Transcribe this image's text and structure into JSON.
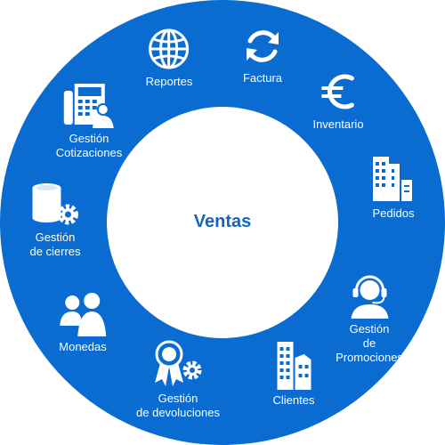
{
  "diagram": {
    "center": "Ventas",
    "colors": {
      "ring": "#0a6cd1",
      "center": "#ffffff",
      "text": "#ffffff",
      "title": "#1565c0"
    },
    "items": [
      {
        "label": "Reportes",
        "icon": "globe-icon"
      },
      {
        "label": "Factura",
        "icon": "refresh-arrows-icon"
      },
      {
        "label": "Inventario",
        "icon": "euro-icon"
      },
      {
        "label": "Pedidos",
        "icon": "buildings-icon"
      },
      {
        "label": "Gestión\nde Promociones",
        "icon": "headset-operator-icon"
      },
      {
        "label": "Clientes",
        "icon": "skyscrapers-icon"
      },
      {
        "label": "Gestión\nde devoluciones",
        "icon": "award-gear-icon"
      },
      {
        "label": "Monedas",
        "icon": "people-icon"
      },
      {
        "label": "Gestión\nde cierres",
        "icon": "database-gear-icon"
      },
      {
        "label": "Gestión\nCotizaciones",
        "icon": "phone-user-icon"
      }
    ]
  }
}
